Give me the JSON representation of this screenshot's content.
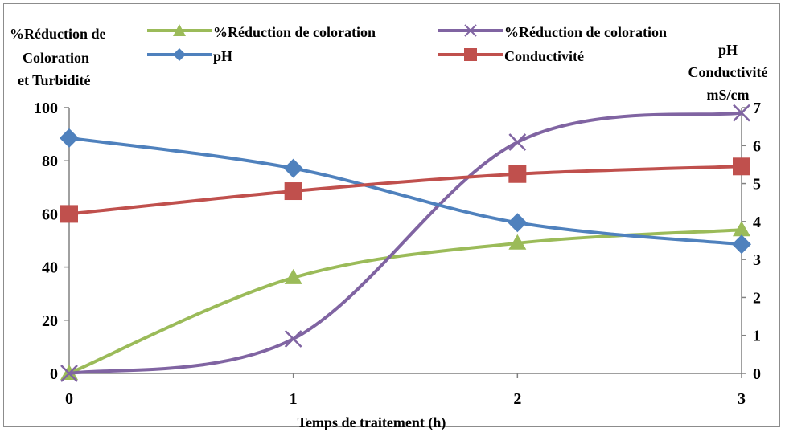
{
  "chart_data": {
    "type": "line",
    "x": [
      0,
      1,
      2,
      3
    ],
    "xlabel": "Temps de traitement  (h)",
    "ylabel_left": [
      "%Réduction de",
      "Coloration",
      "et Turbidité"
    ],
    "ylabel_right": [
      "pH",
      "Conductivité",
      "mS/cm"
    ],
    "ylim_left": [
      0,
      100
    ],
    "ylim_right": [
      0,
      7
    ],
    "yticks_left": [
      "0",
      "20",
      "40",
      "60",
      "80",
      "100"
    ],
    "yticks_right": [
      "0",
      "1",
      "2",
      "3",
      "4",
      "5",
      "6",
      "7"
    ],
    "xticks": [
      "0",
      "1",
      "2",
      "3"
    ],
    "grid": false,
    "legend": "top",
    "series": [
      {
        "name": "%Réduction de coloration",
        "axis": "left",
        "color": "#9BBB59",
        "marker": "triangle",
        "values": [
          0,
          36,
          49,
          54
        ]
      },
      {
        "name": "%Réduction de coloration",
        "axis": "left",
        "color": "#8064A2",
        "marker": "x",
        "values": [
          0,
          13,
          87,
          98
        ]
      },
      {
        "name": "pH",
        "axis": "right",
        "color": "#4F81BD",
        "marker": "diamond",
        "values": [
          6.2,
          5.4,
          3.97,
          3.4
        ]
      },
      {
        "name": "Conductivité",
        "axis": "right",
        "color": "#C0504D",
        "marker": "square",
        "values": [
          4.2,
          4.8,
          5.25,
          5.45
        ]
      }
    ]
  }
}
